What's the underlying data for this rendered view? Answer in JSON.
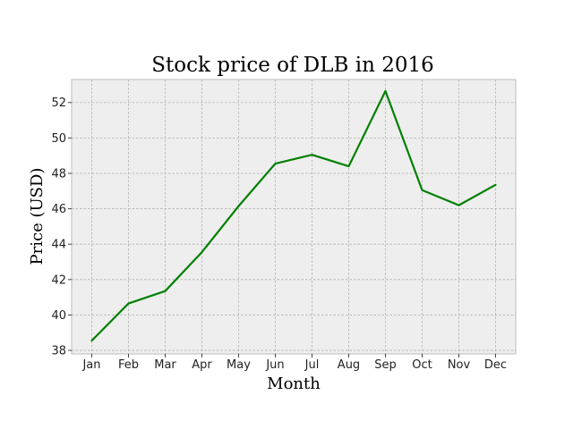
{
  "chart_data": {
    "type": "line",
    "title": "Stock price of DLB in 2016",
    "xlabel": "Month",
    "ylabel": "Price (USD)",
    "categories": [
      "Jan",
      "Feb",
      "Mar",
      "Apr",
      "May",
      "Jun",
      "Jul",
      "Aug",
      "Sep",
      "Oct",
      "Nov",
      "Dec"
    ],
    "series": [
      {
        "values": [
          38.55,
          40.65,
          41.35,
          43.55,
          46.15,
          48.55,
          49.05,
          48.4,
          52.65,
          47.05,
          46.2,
          47.35
        ],
        "color": "#008000"
      }
    ],
    "yticks": [
      38,
      40,
      42,
      44,
      46,
      48,
      50,
      52
    ],
    "ylim": [
      37.8,
      53.3
    ],
    "grid": true,
    "background": "#eeeeee"
  }
}
